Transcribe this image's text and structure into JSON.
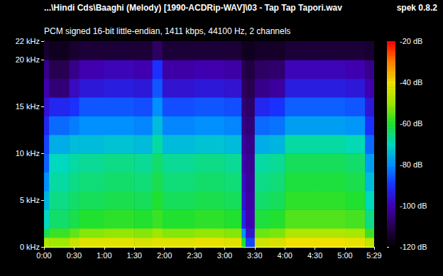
{
  "chart_data": {
    "type": "heatmap",
    "title": "...\\Hindi Cds\\Baaghi (Melody) [1990-ACDRip-WAV]\\03 - Tap Tap Tapori.wav",
    "subtitle": "PCM signed 16-bit little-endian, 1411 kbps, 44100 Hz, 2 channels",
    "annotations": [
      "spek 0.8.2"
    ],
    "grid": false,
    "xlim": [
      0,
      329
    ],
    "xticks": [
      {
        "value": 0,
        "label": "0:00"
      },
      {
        "value": 30,
        "label": "0:30"
      },
      {
        "value": 60,
        "label": "1:00"
      },
      {
        "value": 90,
        "label": "1:30"
      },
      {
        "value": 120,
        "label": "2:00"
      },
      {
        "value": 150,
        "label": "2:30"
      },
      {
        "value": 180,
        "label": "3:00"
      },
      {
        "value": 210,
        "label": "3:30"
      },
      {
        "value": 240,
        "label": "4:00"
      },
      {
        "value": 270,
        "label": "4:30"
      },
      {
        "value": 300,
        "label": "5:00"
      },
      {
        "value": 329,
        "label": "5:29"
      }
    ],
    "ylim": [
      0,
      22
    ],
    "yticks": [
      {
        "value": 0,
        "label": "0 kHz"
      },
      {
        "value": 5,
        "label": "5 kHz"
      },
      {
        "value": 10,
        "label": "10 kHz"
      },
      {
        "value": 15,
        "label": "15 kHz"
      },
      {
        "value": 20,
        "label": "20 kHz"
      },
      {
        "value": 22,
        "label": "22 kHz"
      }
    ],
    "time_bins_s": [
      0,
      5,
      25,
      35,
      60,
      90,
      108,
      118,
      150,
      180,
      197,
      201,
      210,
      225,
      240,
      270,
      300,
      320,
      329
    ],
    "freq_bins_khz": [
      0,
      1,
      2,
      4,
      6,
      8,
      10,
      12,
      14,
      16,
      18,
      20,
      22
    ],
    "levels_db": [
      [
        -48,
        -62,
        -70,
        -75,
        -80,
        -85,
        -88,
        -92,
        -96,
        -100,
        -104,
        -114
      ],
      [
        -50,
        -58,
        -64,
        -66,
        -68,
        -70,
        -76,
        -84,
        -92,
        -106,
        -110,
        -116
      ],
      [
        -45,
        -55,
        -62,
        -64,
        -66,
        -68,
        -74,
        -82,
        -90,
        -98,
        -104,
        -114
      ],
      [
        -42,
        -52,
        -60,
        -63,
        -65,
        -67,
        -74,
        -80,
        -86,
        -95,
        -100,
        -113
      ],
      [
        -42,
        -51,
        -59,
        -62,
        -64,
        -66,
        -73,
        -80,
        -86,
        -94,
        -99,
        -113
      ],
      [
        -43,
        -52,
        -60,
        -63,
        -65,
        -67,
        -74,
        -81,
        -87,
        -95,
        -100,
        -113
      ],
      [
        -42,
        -50,
        -58,
        -60,
        -62,
        -64,
        -68,
        -74,
        -80,
        -86,
        -90,
        -108
      ],
      [
        -42,
        -52,
        -60,
        -63,
        -65,
        -67,
        -74,
        -81,
        -87,
        -96,
        -101,
        -113
      ],
      [
        -41,
        -51,
        -59,
        -62,
        -64,
        -66,
        -73,
        -80,
        -86,
        -95,
        -100,
        -113
      ],
      [
        -42,
        -52,
        -60,
        -63,
        -65,
        -67,
        -74,
        -81,
        -87,
        -96,
        -101,
        -113
      ],
      [
        -60,
        -80,
        -92,
        -96,
        -98,
        -100,
        -102,
        -104,
        -106,
        -108,
        -110,
        -116
      ],
      [
        -88,
        -96,
        -100,
        -101,
        -102,
        -103,
        -104,
        -106,
        -108,
        -110,
        -112,
        -116
      ],
      [
        -44,
        -54,
        -61,
        -64,
        -66,
        -68,
        -76,
        -84,
        -92,
        -104,
        -108,
        -115
      ],
      [
        -43,
        -53,
        -60,
        -63,
        -65,
        -67,
        -75,
        -83,
        -90,
        -102,
        -107,
        -115
      ],
      [
        -40,
        -48,
        -56,
        -59,
        -61,
        -63,
        -68,
        -78,
        -85,
        -94,
        -99,
        -113
      ],
      [
        -40,
        -48,
        -56,
        -59,
        -61,
        -63,
        -68,
        -78,
        -85,
        -94,
        -99,
        -113
      ],
      [
        -41,
        -49,
        -57,
        -60,
        -62,
        -64,
        -69,
        -79,
        -86,
        -95,
        -100,
        -113
      ],
      [
        -46,
        -58,
        -66,
        -70,
        -74,
        -78,
        -84,
        -90,
        -95,
        -100,
        -104,
        -114
      ]
    ],
    "colorbar_range": [
      -120,
      -20
    ],
    "colorbar_ticks": [
      {
        "value": -20,
        "label": "-20 dB"
      },
      {
        "value": -40,
        "label": "-40 dB"
      },
      {
        "value": -60,
        "label": "-60 dB"
      },
      {
        "value": -80,
        "label": "-80 dB"
      },
      {
        "value": -100,
        "label": "-100 dB"
      },
      {
        "value": -120,
        "label": "-120 dB"
      }
    ]
  }
}
